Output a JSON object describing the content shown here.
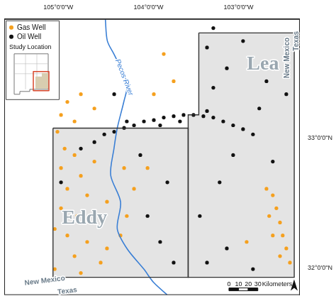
{
  "chart_data": {
    "type": "scatter",
    "xlim": [
      -105.6,
      -102.32
    ],
    "ylim": [
      31.79,
      33.92
    ],
    "xticks": [
      {
        "value": -105,
        "label": "105°0'0\"W"
      },
      {
        "value": -104,
        "label": "104°0'0\"W"
      },
      {
        "value": -103,
        "label": "103°0'0\"W"
      }
    ],
    "yticks": [
      {
        "value": 32,
        "label": "32°0'0\"N"
      },
      {
        "value": 33,
        "label": "33°0'0\"N"
      }
    ],
    "grid": false,
    "legend": "top left",
    "series": [
      {
        "name": "Gas Well",
        "color": "#f5a01e",
        "marker": "circle",
        "x": [
          -104.97,
          -104.9,
          -104.75,
          -104.6,
          -104.82,
          -105.01,
          -104.93,
          -104.82,
          -104.97,
          -104.75,
          -104.9,
          -104.68,
          -104.97,
          -104.79,
          -104.6,
          -104.9,
          -104.68,
          -104.46,
          -104.82,
          -104.53,
          -104.31,
          -104.24,
          -104.16,
          -104.27,
          -105.04,
          -104.6,
          -104.46,
          -104.01,
          -102.62,
          -102.58,
          -102.54,
          -102.51,
          -102.47,
          -102.43,
          -102.66,
          -102.62,
          -102.54,
          -102.69,
          -102.91,
          -103.94,
          -103.72,
          -103.83,
          -105.04,
          -104.75
        ],
        "y": [
          33.18,
          33.28,
          33.34,
          33.23,
          33.13,
          33.05,
          32.92,
          32.87,
          32.77,
          32.71,
          32.61,
          32.56,
          32.46,
          32.4,
          32.35,
          32.25,
          32.2,
          32.15,
          32.09,
          32.04,
          32.25,
          32.4,
          32.61,
          32.77,
          32.3,
          32.82,
          32.51,
          32.77,
          32.56,
          32.46,
          32.35,
          32.25,
          32.15,
          32.04,
          32.4,
          32.25,
          32.09,
          32.61,
          32.2,
          33.34,
          33.44,
          33.65,
          31.99,
          31.96
        ]
      },
      {
        "name": "Oil Well",
        "color": "#111111",
        "marker": "circle",
        "x": [
          -104.75,
          -104.6,
          -104.49,
          -104.38,
          -104.27,
          -104.16,
          -104.05,
          -103.94,
          -103.83,
          -103.72,
          -103.61,
          -103.5,
          -103.39,
          -103.28,
          -103.17,
          -103.06,
          -102.95,
          -102.84,
          -104.24,
          -103.87,
          -103.35,
          -103.65,
          -103.35,
          -103.13,
          -102.95,
          -102.69,
          -102.47,
          -103.28,
          -102.77,
          -103.06,
          -102.62,
          -103.21,
          -103.43,
          -103.13,
          -102.84,
          -103.35,
          -104.01,
          -103.87,
          -103.72,
          -103.79,
          -104.09,
          -104.97,
          -104.38,
          -103.28
        ],
        "y": [
          32.92,
          32.97,
          33.03,
          33.05,
          33.08,
          33.1,
          33.13,
          33.14,
          33.16,
          33.17,
          33.18,
          33.18,
          33.17,
          33.16,
          33.13,
          33.1,
          33.07,
          33.03,
          33.13,
          33.1,
          33.21,
          33.13,
          33.7,
          33.54,
          33.75,
          33.44,
          33.34,
          33.39,
          33.23,
          32.87,
          32.82,
          32.66,
          32.4,
          32.15,
          31.99,
          32.04,
          32.4,
          32.2,
          32.04,
          32.66,
          32.87,
          32.66,
          33.34,
          33.85
        ]
      }
    ],
    "river": {
      "name": "Pecos River",
      "color": "#3a7fd5",
      "label_x": -104.27,
      "label_y": 33.47,
      "x": [
        -104.478,
        -104.456,
        -104.382,
        -104.309,
        -104.235,
        -104.272,
        -104.346,
        -104.382,
        -104.419,
        -104.309,
        -104.346,
        -104.235,
        -104.051,
        -103.941,
        -103.794
      ],
      "y": [
        33.917,
        33.751,
        33.648,
        33.544,
        33.415,
        33.285,
        33.078,
        32.922,
        32.715,
        32.508,
        32.301,
        32.145,
        31.99,
        31.886,
        31.793
      ]
    },
    "boundaries": [
      {
        "name": "Eddy",
        "color": "#333333",
        "label_x": -104.71,
        "label_y": 32.38,
        "x": [
          -105.059,
          -103.559,
          -103.559,
          -105.059,
          -105.059
        ],
        "y": [
          33.078,
          33.078,
          31.927,
          31.927,
          33.078
        ]
      },
      {
        "name": "Lea",
        "color": "#333333",
        "label_x": -102.73,
        "label_y": 33.57,
        "x": [
          -103.441,
          -102.382,
          -102.382,
          -103.559,
          -103.559,
          -103.441,
          -103.441
        ],
        "y": [
          33.813,
          33.813,
          31.927,
          31.927,
          33.181,
          33.181,
          33.813
        ]
      }
    ],
    "annotations": [
      {
        "text": "New Mexico",
        "x": -105.15,
        "y": 31.9
      },
      {
        "text": "Texas",
        "x": -104.9,
        "y": 31.82
      },
      {
        "text": "New Mexico",
        "x": -102.46,
        "y": 33.62
      },
      {
        "text": "Texas",
        "x": -102.36,
        "y": 33.75
      }
    ],
    "inset": {
      "title": "Study Location"
    },
    "scale_bar": {
      "ticks": [
        0,
        10,
        20,
        30
      ],
      "unit": "Kilometers"
    }
  }
}
